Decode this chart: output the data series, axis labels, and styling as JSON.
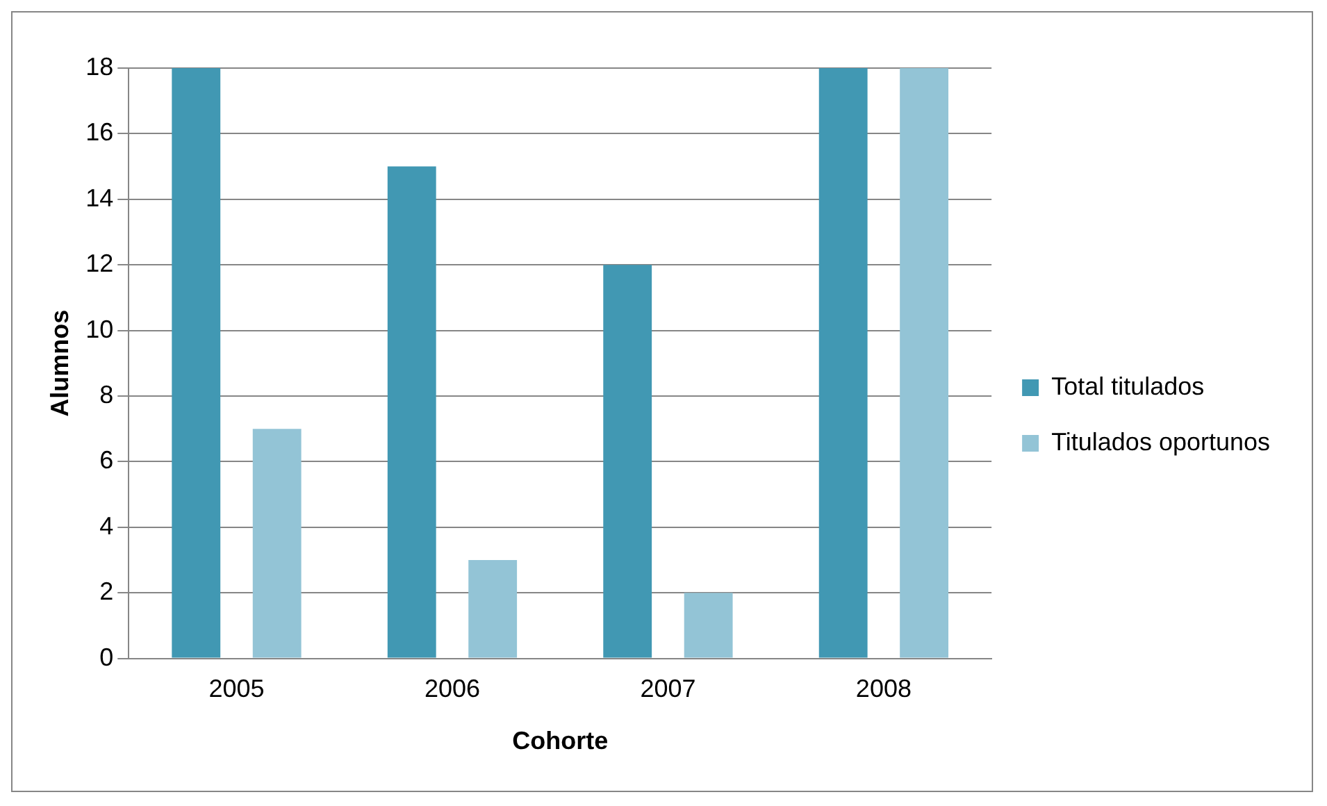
{
  "chart_data": {
    "type": "bar",
    "xlabel": "Cohorte",
    "ylabel": "Alumnos",
    "categories": [
      "2005",
      "2006",
      "2007",
      "2008"
    ],
    "series": [
      {
        "name": "Total titulados",
        "color": "#4198b3",
        "values": [
          18,
          15,
          12,
          18
        ]
      },
      {
        "name": "Titulados oportunos",
        "color": "#93c4d6",
        "values": [
          7,
          3,
          2,
          18
        ]
      }
    ],
    "ylim": [
      0,
      18
    ],
    "yticks": [
      0,
      2,
      4,
      6,
      8,
      10,
      12,
      14,
      16,
      18
    ],
    "grid": "y",
    "legend": "right"
  }
}
